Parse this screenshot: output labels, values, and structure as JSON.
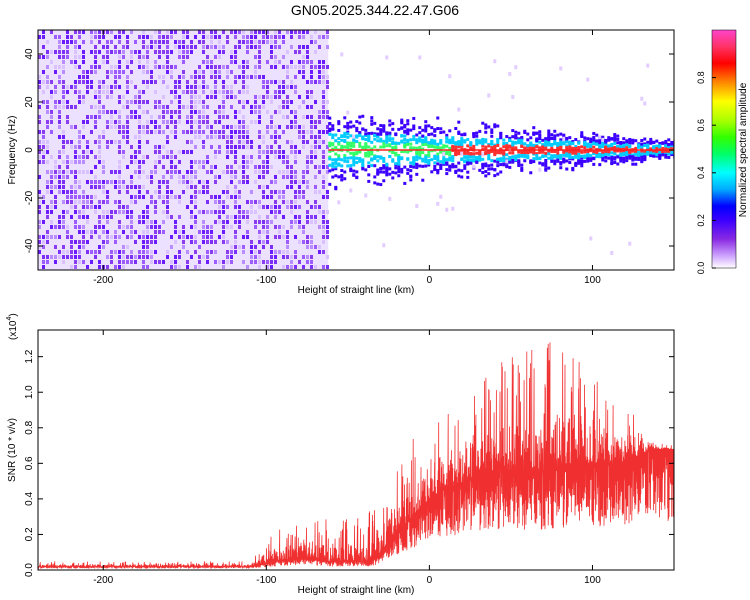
{
  "title": "GN05.2025.344.22.47.G06",
  "chart_data": [
    {
      "type": "heatmap",
      "xlabel": "Height of straight line (km)",
      "ylabel": "Frequency (Hz)",
      "xlim": [
        -240,
        150
      ],
      "ylim": [
        -50,
        50
      ],
      "xticks": [
        -200,
        -100,
        0,
        100
      ],
      "yticks": [
        -40,
        -20,
        0,
        20,
        40
      ],
      "xtick_labels": [
        "-200",
        "-100",
        "0",
        "100"
      ],
      "ytick_labels": [
        "-40",
        "-20",
        "0",
        "20",
        "40"
      ],
      "noise_region_x": [
        -240,
        -62
      ],
      "signal_region_x": [
        -62,
        150
      ],
      "colorbar": {
        "label": "Normalized spectral amplitude",
        "range": [
          0,
          1
        ],
        "ticks": [
          0.0,
          0.2,
          0.4,
          0.6,
          0.8
        ],
        "tick_labels": [
          "0.0",
          "0.2",
          "0.4",
          "0.6",
          "0.8"
        ],
        "colors": [
          "#ffffff",
          "#cfa6ff",
          "#8a2be2",
          "#3b00ff",
          "#0000ff",
          "#00aaff",
          "#00ffff",
          "#00ff66",
          "#33ff00",
          "#aaff00",
          "#ffff00",
          "#ff8800",
          "#ff0000",
          "#ff3366",
          "#ff44cc"
        ]
      }
    },
    {
      "type": "line",
      "xlabel": "Height of straight line (km)",
      "ylabel": "SNR (10 * v/v)",
      "y_multiplier_label": "(x10",
      "y_multiplier_exp": "4",
      "xlim": [
        -240,
        150
      ],
      "ylim": [
        0,
        1.35
      ],
      "xticks": [
        -200,
        -100,
        0,
        100
      ],
      "yticks": [
        0.0,
        0.2,
        0.4,
        0.6,
        0.8,
        1.0,
        1.2
      ],
      "xtick_labels": [
        "-200",
        "-100",
        "0",
        "100"
      ],
      "ytick_labels": [
        "0.0",
        "0.2",
        "0.4",
        "0.6",
        "0.8",
        "1.0",
        "1.2"
      ],
      "line_color": "#f03030",
      "envelope": {
        "x": [
          -240,
          -110,
          -100,
          -80,
          -60,
          -45,
          -35,
          -20,
          -10,
          0,
          10,
          20,
          30,
          40,
          55,
          70,
          85,
          100,
          115,
          130,
          135,
          150
        ],
        "baseline": [
          0.02,
          0.02,
          0.04,
          0.07,
          0.05,
          0.05,
          0.05,
          0.2,
          0.3,
          0.4,
          0.47,
          0.48,
          0.55,
          0.56,
          0.56,
          0.56,
          0.6,
          0.6,
          0.6,
          0.65,
          0.68,
          0.68
        ],
        "peak": [
          0.05,
          0.05,
          0.2,
          0.27,
          0.3,
          0.3,
          0.38,
          0.58,
          0.74,
          0.82,
          0.9,
          0.95,
          1.05,
          1.15,
          1.22,
          1.3,
          1.25,
          1.1,
          0.98,
          0.9,
          0.72,
          0.7
        ]
      }
    }
  ]
}
